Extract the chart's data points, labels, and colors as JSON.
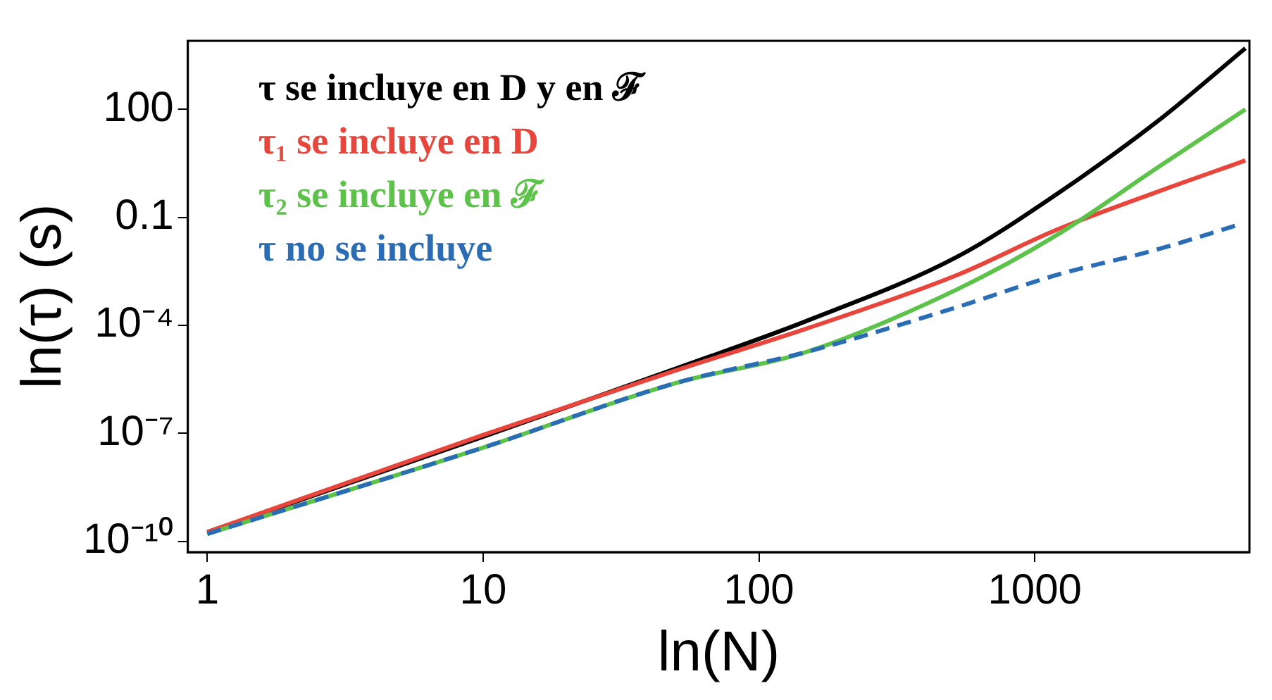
{
  "chart_data": {
    "type": "line",
    "xlabel": "ln(N)",
    "ylabel": "ln(τ) (s)",
    "log": "xy",
    "grid": false,
    "legend": "top left",
    "marker": "none",
    "xlim": [
      0.85,
      6000
    ],
    "xticks": [
      1,
      10,
      100,
      1000
    ],
    "ylim": [
      5e-11,
      8000
    ],
    "yticks": [
      {
        "value": 1e-10,
        "label": "10⁻¹⁰"
      },
      {
        "value": 1e-07,
        "label": "10⁻⁷"
      },
      {
        "value": 0.0001,
        "label": "10⁻⁴"
      },
      0.1,
      100
    ],
    "series": [
      {
        "name": "τ se incluye en D y en ℱ",
        "color": "#000000",
        "x": [
          1,
          10,
          50,
          148,
          523,
          1200,
          2760,
          5800
        ],
        "values": [
          1.8e-10,
          8e-08,
          6.3e-06,
          0.00013,
          0.008,
          0.44,
          44,
          5000
        ]
      },
      {
        "name": "τ₁ se incluye en D",
        "color": "#e8463c",
        "x": [
          1,
          10,
          50,
          148,
          523,
          1200,
          2760,
          5800
        ],
        "values": [
          1.8e-10,
          9e-08,
          5.6e-06,
          8e-05,
          0.0025,
          0.045,
          0.5,
          3.8
        ]
      },
      {
        "name": "τ₂ se incluye en ℱ",
        "color": "#5cc24a",
        "x": [
          1,
          10,
          50,
          148,
          523,
          1200,
          2760,
          5800
        ],
        "values": [
          1.6e-10,
          4e-08,
          2.5e-06,
          1.8e-05,
          0.001,
          0.032,
          2.3,
          100
        ]
      },
      {
        "name": "τ no se incluye",
        "color": "#2a6db5",
        "line_style": "dashed",
        "x": [
          1,
          10,
          50,
          148,
          523,
          1200,
          2760,
          5500
        ],
        "values": [
          1.6e-10,
          4e-08,
          2.5e-06,
          1.8e-05,
          0.00032,
          0.0025,
          0.0126,
          0.063
        ]
      }
    ]
  }
}
